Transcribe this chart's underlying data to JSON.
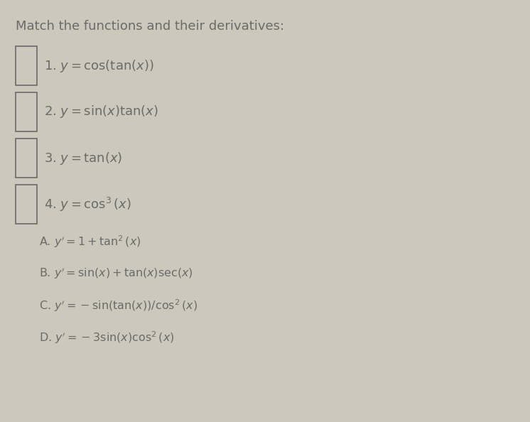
{
  "title": "Match the functions and their derivatives:",
  "background_color": "#ccc9bc",
  "text_color": "#6a6a6a",
  "functions_math": [
    "1. $y = \\cos(\\tan(x))$",
    "2. $y = \\sin(x)\\tan(x)$",
    "3. $y = \\tan(x)$",
    "4. $y = \\cos^3(x)$"
  ],
  "derivatives_math": [
    "A. $y' = 1 + \\tan^2(x)$",
    "B. $y' = \\sin(x) + \\tan(x)\\sec(x)$",
    "C. $y' = -\\sin(\\tan(x))/\\cos^2(x)$",
    "D. $y' = -3\\sin(x)\\cos^2(x)$"
  ],
  "title_fontsize": 13,
  "item_fontsize": 13,
  "deriv_fontsize": 11.5,
  "fig_width": 7.46,
  "fig_height": 5.94,
  "dpi": 100
}
